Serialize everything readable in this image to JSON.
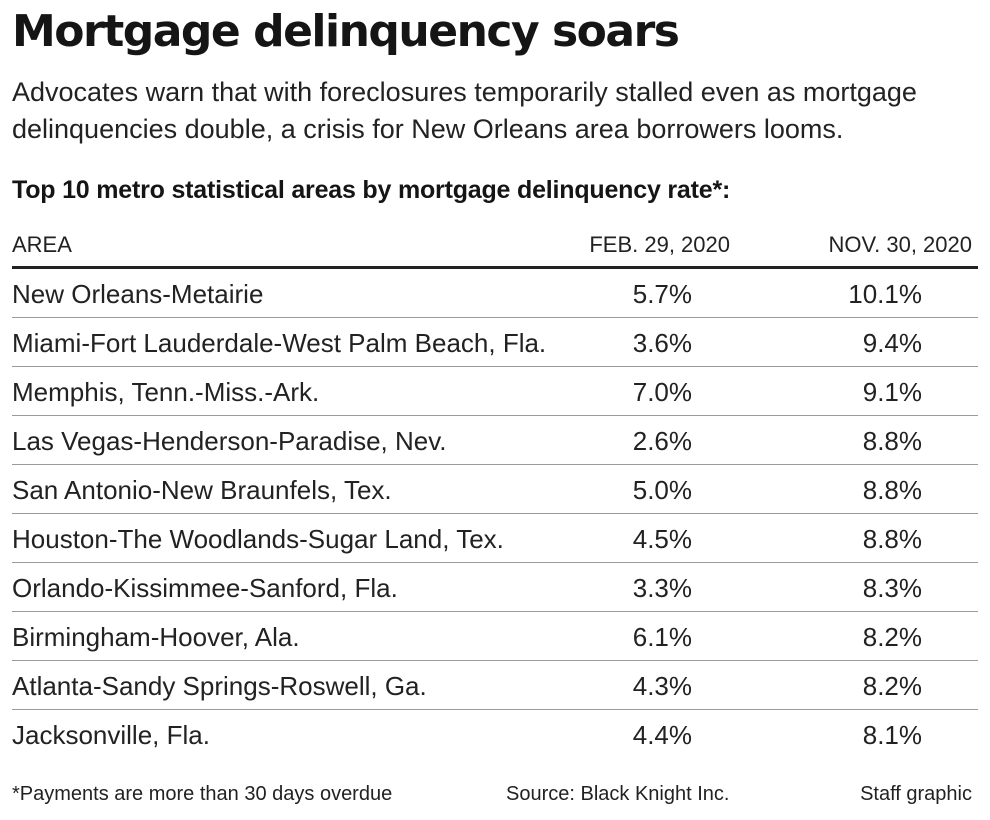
{
  "headline": "Mortgage delinquency soars",
  "deck": "Advocates warn that with foreclosures temporarily stalled even as mortgage delinquencies double, a crisis for New Orleans area borrowers looms.",
  "chart_data": {
    "type": "table",
    "title": "Top 10 metro statistical areas by mortgage delinquency rate*:",
    "columns": [
      "AREA",
      "FEB. 29, 2020",
      "NOV. 30, 2020"
    ],
    "rows": [
      {
        "area": "New Orleans-Metairie",
        "feb": "5.7%",
        "nov": "10.1%"
      },
      {
        "area": "Miami-Fort Lauderdale-West Palm Beach, Fla.",
        "feb": "3.6%",
        "nov": "9.4%"
      },
      {
        "area": "Memphis, Tenn.-Miss.-Ark.",
        "feb": "7.0%",
        "nov": "9.1%"
      },
      {
        "area": "Las Vegas-Henderson-Paradise, Nev.",
        "feb": "2.6%",
        "nov": "8.8%"
      },
      {
        "area": "San Antonio-New Braunfels, Tex.",
        "feb": "5.0%",
        "nov": "8.8%"
      },
      {
        "area": "Houston-The Woodlands-Sugar Land, Tex.",
        "feb": "4.5%",
        "nov": "8.8%"
      },
      {
        "area": "Orlando-Kissimmee-Sanford, Fla.",
        "feb": "3.3%",
        "nov": "8.3%"
      },
      {
        "area": "Birmingham-Hoover, Ala.",
        "feb": "6.1%",
        "nov": "8.2%"
      },
      {
        "area": "Atlanta-Sandy Springs-Roswell, Ga.",
        "feb": "4.3%",
        "nov": "8.2%"
      },
      {
        "area": "Jacksonville, Fla.",
        "feb": "4.4%",
        "nov": "8.1%"
      }
    ]
  },
  "footer": {
    "note": "*Payments are more than 30 days overdue",
    "source": "Source: Black Knight Inc.",
    "credit": "Staff graphic"
  }
}
